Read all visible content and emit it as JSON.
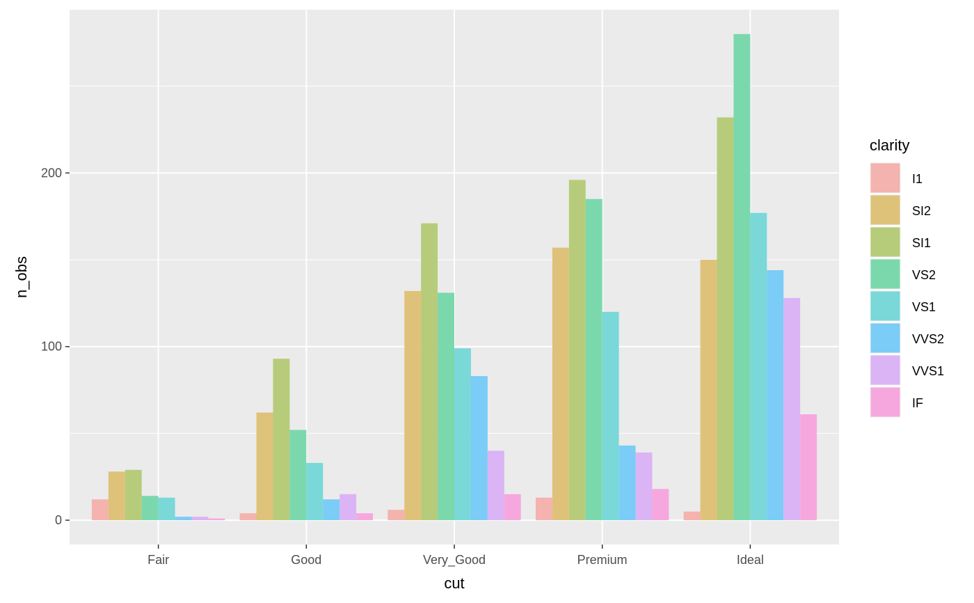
{
  "chart_data": {
    "type": "bar",
    "xlabel": "cut",
    "ylabel": "n_obs",
    "categories": [
      "Fair",
      "Good",
      "Very_Good",
      "Premium",
      "Ideal"
    ],
    "ylim": [
      -14,
      294
    ],
    "yticks": [
      0,
      100,
      200
    ],
    "grid": true,
    "legend": {
      "title": "clarity",
      "position": "right"
    },
    "series": [
      {
        "name": "I1",
        "color": "#F4B3AE",
        "values": [
          12,
          4,
          6,
          13,
          5
        ]
      },
      {
        "name": "SI2",
        "color": "#DFC27A",
        "values": [
          28,
          62,
          132,
          157,
          150
        ]
      },
      {
        "name": "SI1",
        "color": "#B7CC7A",
        "values": [
          29,
          93,
          171,
          196,
          232
        ]
      },
      {
        "name": "VS2",
        "color": "#7BD8AD",
        "values": [
          14,
          52,
          131,
          185,
          280
        ]
      },
      {
        "name": "VS1",
        "color": "#7AD8D9",
        "values": [
          13,
          33,
          99,
          120,
          177
        ]
      },
      {
        "name": "VVS2",
        "color": "#7BCCF6",
        "values": [
          2,
          12,
          83,
          43,
          144
        ]
      },
      {
        "name": "VVS1",
        "color": "#DBB4F5",
        "values": [
          2,
          15,
          40,
          39,
          128
        ]
      },
      {
        "name": "IF",
        "color": "#F6A8DE",
        "values": [
          1,
          4,
          15,
          18,
          61
        ]
      }
    ]
  }
}
